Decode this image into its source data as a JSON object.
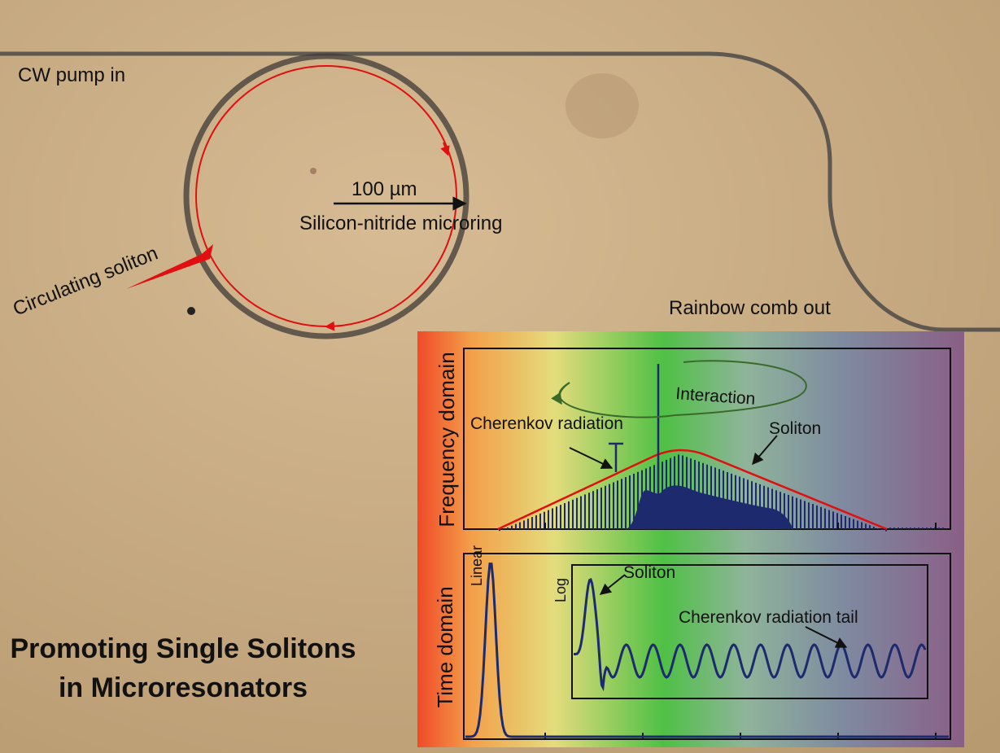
{
  "image": {
    "ring": {
      "pump_in": "CW pump in",
      "scale": "100 µm",
      "ring_label": "Silicon-nitride microring",
      "soliton": "Circulating soliton",
      "comb_out": "Rainbow comb out"
    },
    "frequency_panel": {
      "axis_label": "Frequency domain",
      "interaction": "Interaction",
      "cherenkov": "Cherenkov radiation",
      "soliton": "Soliton"
    },
    "time_panel": {
      "axis_label": "Time domain",
      "linear": "Linear",
      "log": "Log",
      "soliton": "Soliton",
      "cherenkov_tail": "Cherenkov radiation tail"
    },
    "title": [
      "Promoting Single Solitons",
      "in Microresonators"
    ]
  }
}
